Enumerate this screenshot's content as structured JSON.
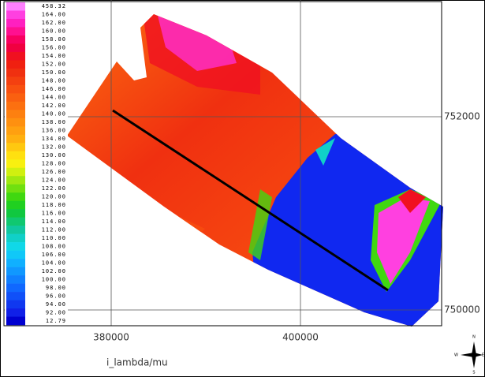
{
  "legend": {
    "entries": [
      {
        "label": "458.32",
        "color": "#ff80ff"
      },
      {
        "label": "164.00",
        "color": "#ff40e0"
      },
      {
        "label": "162.00",
        "color": "#ff20c0"
      },
      {
        "label": "160.00",
        "color": "#ff1090"
      },
      {
        "label": "158.00",
        "color": "#f80060"
      },
      {
        "label": "156.00",
        "color": "#f00040"
      },
      {
        "label": "154.00",
        "color": "#f01020"
      },
      {
        "label": "152.00",
        "color": "#f02010"
      },
      {
        "label": "150.00",
        "color": "#f03010"
      },
      {
        "label": "148.00",
        "color": "#f44010"
      },
      {
        "label": "146.00",
        "color": "#f85010"
      },
      {
        "label": "144.00",
        "color": "#fa6010"
      },
      {
        "label": "142.00",
        "color": "#fc7010"
      },
      {
        "label": "140.00",
        "color": "#fd8010"
      },
      {
        "label": "138.00",
        "color": "#fe9010"
      },
      {
        "label": "136.00",
        "color": "#ffa010"
      },
      {
        "label": "134.00",
        "color": "#ffb010"
      },
      {
        "label": "132.00",
        "color": "#ffc810"
      },
      {
        "label": "130.00",
        "color": "#ffe010"
      },
      {
        "label": "128.00",
        "color": "#f8f010"
      },
      {
        "label": "126.00",
        "color": "#d0f010"
      },
      {
        "label": "124.00",
        "color": "#a0e810"
      },
      {
        "label": "122.00",
        "color": "#70e010"
      },
      {
        "label": "120.00",
        "color": "#40d810"
      },
      {
        "label": "118.00",
        "color": "#20d020"
      },
      {
        "label": "116.00",
        "color": "#10c840"
      },
      {
        "label": "114.00",
        "color": "#10c870"
      },
      {
        "label": "112.00",
        "color": "#10c8a0"
      },
      {
        "label": "110.00",
        "color": "#10d0c8"
      },
      {
        "label": "108.00",
        "color": "#10d8e8"
      },
      {
        "label": "106.00",
        "color": "#10c8f8"
      },
      {
        "label": "104.00",
        "color": "#10b0ff"
      },
      {
        "label": "102.00",
        "color": "#1098ff"
      },
      {
        "label": "100.00",
        "color": "#1080ff"
      },
      {
        "label": "98.00",
        "color": "#1068ff"
      },
      {
        "label": "96.00",
        "color": "#1050f8"
      },
      {
        "label": "94.00",
        "color": "#1038f0"
      },
      {
        "label": "92.00",
        "color": "#1020e8"
      },
      {
        "label": "12.79",
        "color": "#0000d0"
      }
    ]
  },
  "axes": {
    "x_labels": [
      "380000",
      "400000"
    ],
    "y_labels": [
      "752000",
      "750000"
    ],
    "caption": "i_lambda/mu"
  },
  "compass": {
    "n": "N",
    "e": "E",
    "s": "S",
    "w": "W"
  }
}
